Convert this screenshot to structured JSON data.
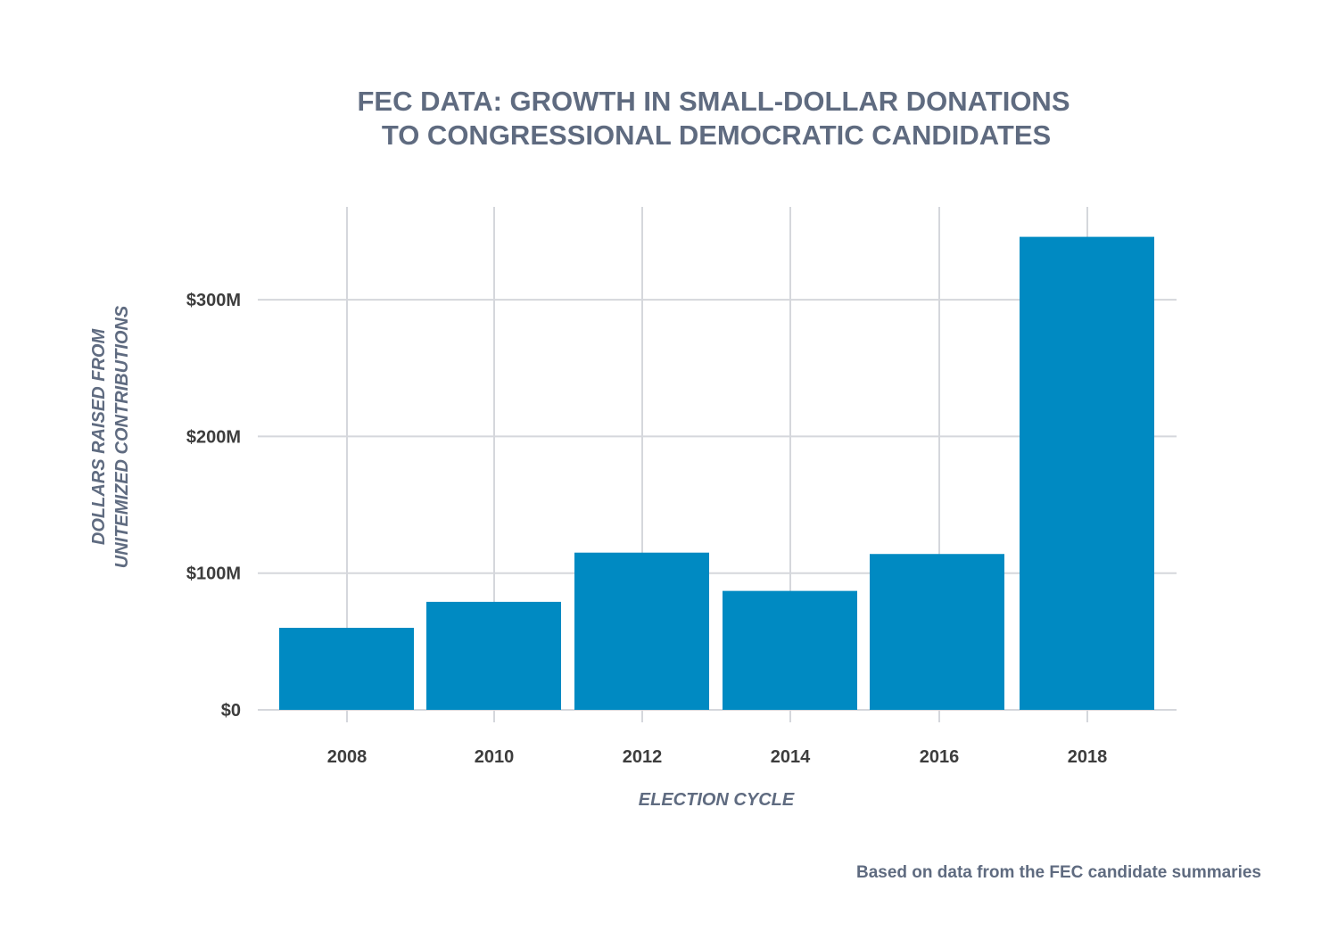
{
  "chart_data": {
    "type": "bar",
    "title_lines": [
      "FEC DATA: GROWTH IN SMALL-DOLLAR DONATIONS",
      "TO CONGRESSIONAL DEMOCRATIC CANDIDATES"
    ],
    "categories": [
      "2008",
      "2010",
      "2012",
      "2014",
      "2016",
      "2018"
    ],
    "values": [
      60,
      79,
      115,
      87,
      114,
      346
    ],
    "value_unit": "millions of dollars",
    "xlabel": "ELECTION CYCLE",
    "ylabel_lines": [
      "DOLLARS RAISED FROM",
      "UNITEMIZED CONTRIBUTIONS"
    ],
    "yticks": [
      0,
      100,
      200,
      300
    ],
    "ytick_labels": [
      "$0",
      "$100M",
      "$200M",
      "$300M"
    ],
    "ylim": [
      0,
      367
    ],
    "grid": true,
    "bar_color": "#008ac2",
    "source": "Based on data from the FEC candidate summaries"
  }
}
